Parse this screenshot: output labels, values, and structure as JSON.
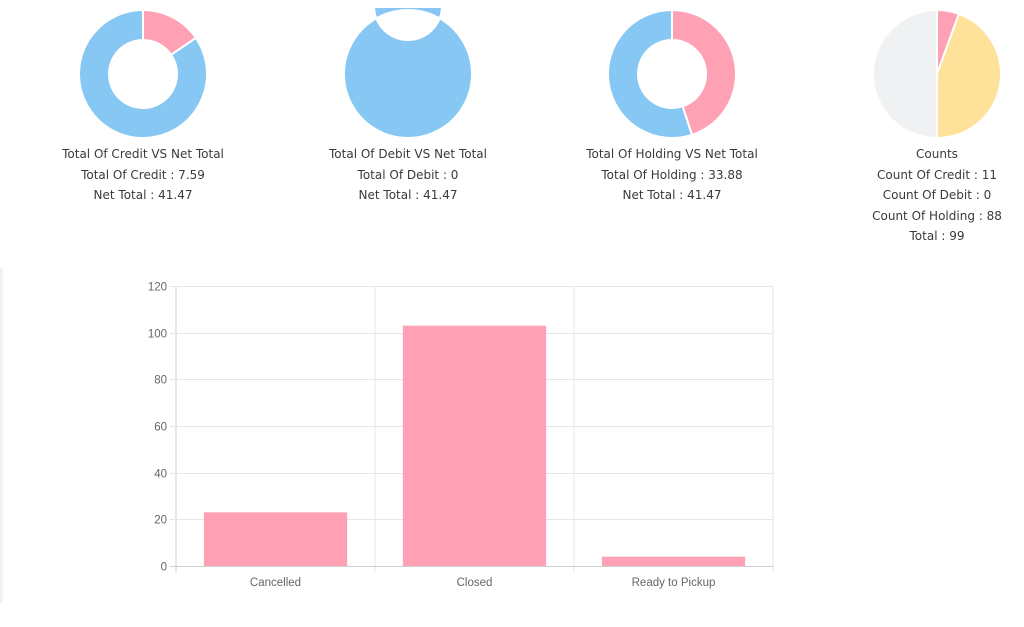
{
  "colors": {
    "blue": "#87c7f3",
    "pink": "#ffa1b5",
    "yellow": "#ffe29a",
    "grey": "#f0f1f3",
    "bar": "#ffa1b5",
    "grid": "#e6e6e6"
  },
  "donuts": [
    {
      "title": "Total Of Credit VS Net Total",
      "lines": [
        "Total Of Credit : 7.59",
        "Net Total : 41.47"
      ]
    },
    {
      "title": "Total Of Debit VS Net Total",
      "lines": [
        "Total Of Debit : 0",
        "Net Total : 41.47"
      ]
    },
    {
      "title": "Total Of Holding VS Net Total",
      "lines": [
        "Total Of Holding : 33.88",
        "Net Total : 41.47"
      ]
    },
    {
      "title": "Counts",
      "lines": [
        "Count Of Credit : 11",
        "Count Of Debit : 0",
        "Count Of Holding : 88",
        "Total : 99"
      ]
    }
  ],
  "chart_data": [
    {
      "type": "pie",
      "title": "Total Of Credit VS Net Total",
      "labels": [
        "Total Of Credit",
        "Net Total"
      ],
      "values": [
        7.59,
        41.47
      ],
      "colors": [
        "#ffa1b5",
        "#87c7f3"
      ],
      "donut": true
    },
    {
      "type": "pie",
      "title": "Total Of Debit VS Net Total",
      "labels": [
        "Total Of Debit",
        "Net Total"
      ],
      "values": [
        0,
        41.47
      ],
      "colors": [
        "#ffa1b5",
        "#87c7f3"
      ],
      "donut": true
    },
    {
      "type": "pie",
      "title": "Total Of Holding VS Net Total",
      "labels": [
        "Total Of Holding",
        "Net Total"
      ],
      "values": [
        33.88,
        41.47
      ],
      "colors": [
        "#ffa1b5",
        "#87c7f3"
      ],
      "donut": true
    },
    {
      "type": "pie",
      "title": "Counts",
      "labels": [
        "Count Of Credit",
        "Count Of Debit",
        "Count Of Holding",
        "Total"
      ],
      "values": [
        11,
        0,
        88,
        99
      ],
      "colors": [
        "#ffa1b5",
        "#87c7f3",
        "#ffe29a",
        "#f0f1f3"
      ],
      "donut": false
    },
    {
      "type": "bar",
      "categories": [
        "Cancelled",
        "Closed",
        "Ready to Pickup"
      ],
      "values": [
        23,
        103,
        4
      ],
      "ylim": [
        0,
        120
      ],
      "yticks": [
        0,
        20,
        40,
        60,
        80,
        100,
        120
      ],
      "grid": true
    }
  ]
}
